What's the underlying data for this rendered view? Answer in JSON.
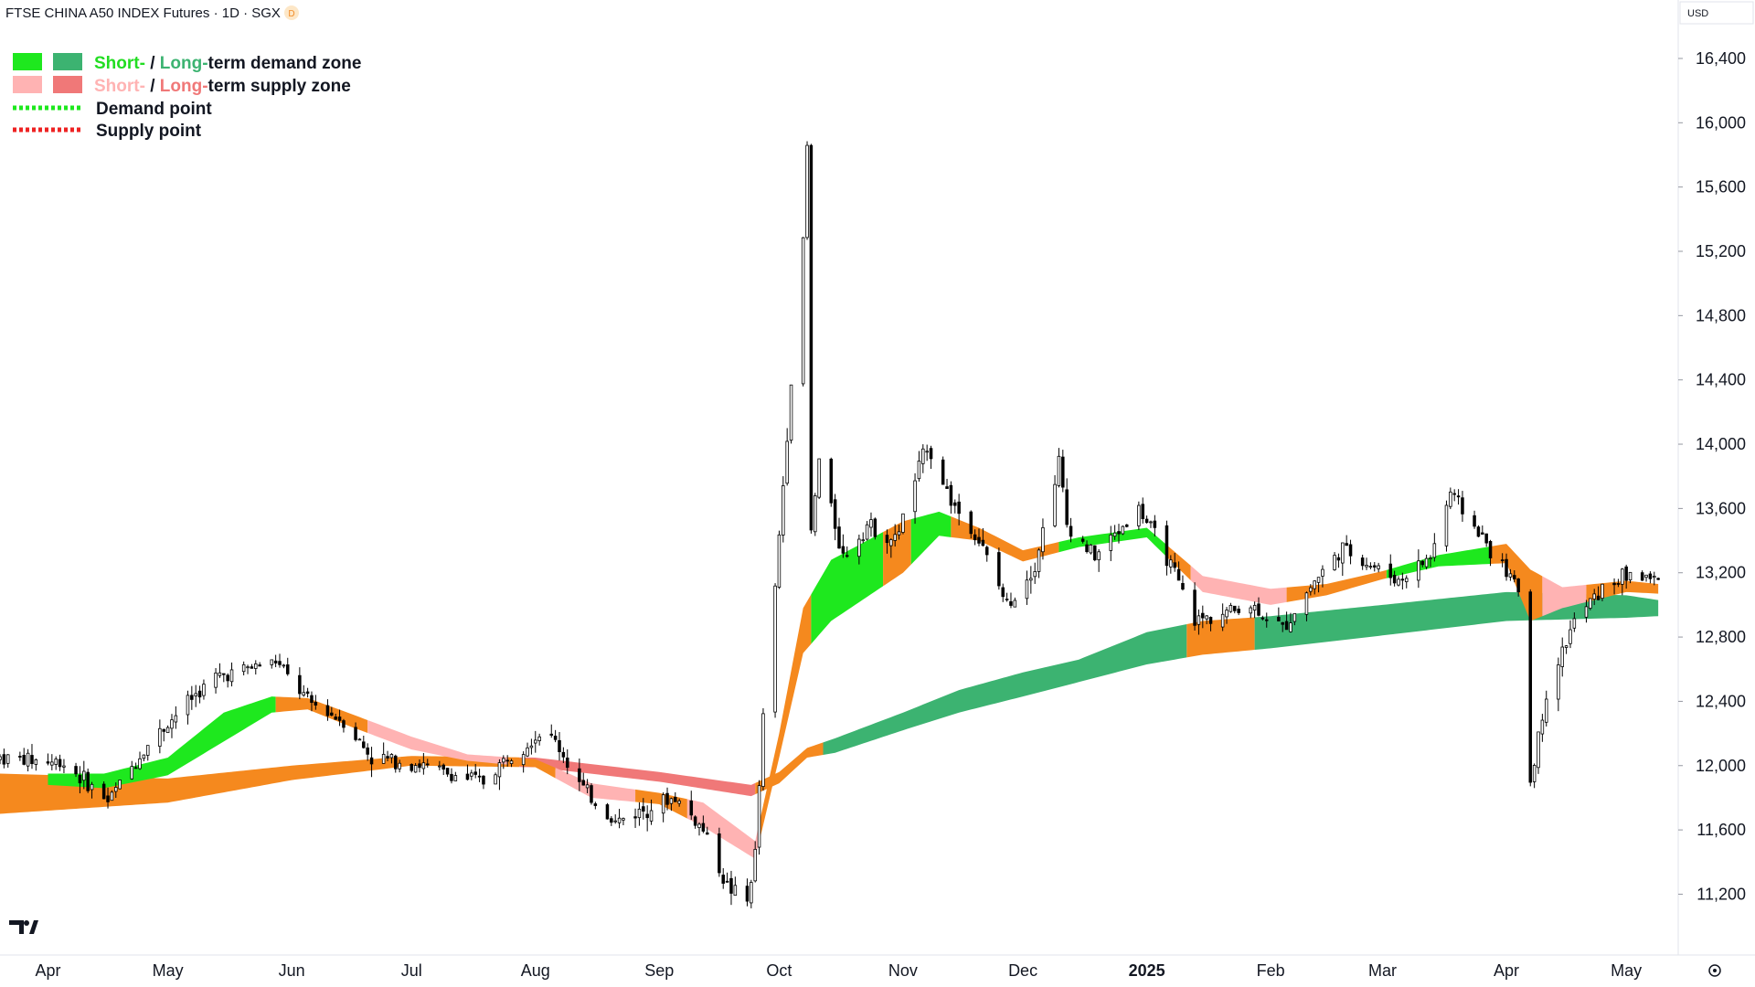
{
  "header": {
    "title": "FTSE CHINA A50 INDEX Futures · 1D · SGX",
    "badge": "D",
    "currency": "USD"
  },
  "legend": {
    "items": [
      {
        "kind": "zone",
        "short_label": "Short-",
        "sep": " / ",
        "long_label": "Long-",
        "rest": "term demand zone",
        "short_color": "#1ee81e",
        "long_color": "#3cb371",
        "short_text_color": "#22dd22",
        "long_text_color": "#3cb371"
      },
      {
        "kind": "zone",
        "short_label": "Short-",
        "sep": " / ",
        "long_label": "Long-",
        "rest": "term supply zone",
        "short_color": "#ffb3b3",
        "long_color": "#f07878",
        "short_text_color": "#ffb3b3",
        "long_text_color": "#f07878"
      },
      {
        "kind": "point",
        "label": "Demand point",
        "color": "#1ee81e"
      },
      {
        "kind": "point",
        "label": "Supply point",
        "color": "#ee2222"
      }
    ]
  },
  "colors": {
    "candle_up_fill": "#ffffff",
    "candle_down_fill": "#000000",
    "candle_stroke": "#000000",
    "neutral_zone": "#f5891e",
    "demand_short": "#1ee81e",
    "demand_long": "#3cb371",
    "supply_short": "#ffb3b3",
    "supply_long": "#f07878"
  },
  "chart_data": {
    "type": "candlestick",
    "ylim": [
      10850,
      16650
    ],
    "y_ticks": [
      11200,
      11600,
      12000,
      12400,
      12800,
      13200,
      13600,
      14000,
      14400,
      14800,
      15200,
      15600,
      16000,
      16400
    ],
    "y_tick_labels": [
      "11,200",
      "11,600",
      "12,000",
      "12,400",
      "12,800",
      "13,200",
      "13,600",
      "14,000",
      "14,400",
      "14,800",
      "15,200",
      "15,600",
      "16,000",
      "16,400"
    ],
    "x_range": [
      "2024-03-20",
      "2025-05-14"
    ],
    "x_ticks": [
      {
        "date": "2024-04-01",
        "label": "Apr",
        "bold": false
      },
      {
        "date": "2024-05-01",
        "label": "May",
        "bold": false
      },
      {
        "date": "2024-06-01",
        "label": "Jun",
        "bold": false
      },
      {
        "date": "2024-07-01",
        "label": "Jul",
        "bold": false
      },
      {
        "date": "2024-08-01",
        "label": "Aug",
        "bold": false
      },
      {
        "date": "2024-09-01",
        "label": "Sep",
        "bold": false
      },
      {
        "date": "2024-10-01",
        "label": "Oct",
        "bold": false
      },
      {
        "date": "2024-11-01",
        "label": "Nov",
        "bold": false
      },
      {
        "date": "2024-12-01",
        "label": "Dec",
        "bold": false
      },
      {
        "date": "2025-01-01",
        "label": "2025",
        "bold": true
      },
      {
        "date": "2025-02-01",
        "label": "Feb",
        "bold": false
      },
      {
        "date": "2025-03-01",
        "label": "Mar",
        "bold": false
      },
      {
        "date": "2025-04-01",
        "label": "Apr",
        "bold": false
      },
      {
        "date": "2025-05-01",
        "label": "May",
        "bold": false
      }
    ],
    "price_keypoints": [
      [
        "2024-03-20",
        12050
      ],
      [
        "2024-04-05",
        12020
      ],
      [
        "2024-04-16",
        11780
      ],
      [
        "2024-04-25",
        12100
      ],
      [
        "2024-05-06",
        12400
      ],
      [
        "2024-05-13",
        12550
      ],
      [
        "2024-05-20",
        12600
      ],
      [
        "2024-05-28",
        12650
      ],
      [
        "2024-06-05",
        12400
      ],
      [
        "2024-06-14",
        12280
      ],
      [
        "2024-06-21",
        12050
      ],
      [
        "2024-07-01",
        12020
      ],
      [
        "2024-07-10",
        11950
      ],
      [
        "2024-07-19",
        11900
      ],
      [
        "2024-07-26",
        12080
      ],
      [
        "2024-08-02",
        12200
      ],
      [
        "2024-08-06",
        12150
      ],
      [
        "2024-08-13",
        11850
      ],
      [
        "2024-08-21",
        11650
      ],
      [
        "2024-08-30",
        11750
      ],
      [
        "2024-09-05",
        11800
      ],
      [
        "2024-09-12",
        11600
      ],
      [
        "2024-09-18",
        11250
      ],
      [
        "2024-09-23",
        11150
      ],
      [
        "2024-09-25",
        11450
      ],
      [
        "2024-09-27",
        12300
      ],
      [
        "2024-09-30",
        13100
      ],
      [
        "2024-10-04",
        14400
      ],
      [
        "2024-10-07",
        15250
      ],
      [
        "2024-10-08",
        15850
      ],
      [
        "2024-10-09",
        13450
      ],
      [
        "2024-10-11",
        13900
      ],
      [
        "2024-10-17",
        13300
      ],
      [
        "2024-10-23",
        13500
      ],
      [
        "2024-10-30",
        13400
      ],
      [
        "2024-11-07",
        14000
      ],
      [
        "2024-11-13",
        13650
      ],
      [
        "2024-11-20",
        13400
      ],
      [
        "2024-11-27",
        13000
      ],
      [
        "2024-12-04",
        13250
      ],
      [
        "2024-12-10",
        13900
      ],
      [
        "2024-12-12",
        13500
      ],
      [
        "2024-12-19",
        13300
      ],
      [
        "2024-12-30",
        13600
      ],
      [
        "2025-01-06",
        13300
      ],
      [
        "2025-01-13",
        12900
      ],
      [
        "2025-01-20",
        12950
      ],
      [
        "2025-01-27",
        13000
      ],
      [
        "2025-02-04",
        12850
      ],
      [
        "2025-02-12",
        13150
      ],
      [
        "2025-02-19",
        13350
      ],
      [
        "2025-02-26",
        13250
      ],
      [
        "2025-03-05",
        13150
      ],
      [
        "2025-03-13",
        13300
      ],
      [
        "2025-03-18",
        13700
      ],
      [
        "2025-03-25",
        13450
      ],
      [
        "2025-04-01",
        13200
      ],
      [
        "2025-04-04",
        13100
      ],
      [
        "2025-04-07",
        11900
      ],
      [
        "2025-04-11",
        12450
      ],
      [
        "2025-04-18",
        12900
      ],
      [
        "2025-04-25",
        13100
      ],
      [
        "2025-05-02",
        13200
      ],
      [
        "2025-05-09",
        13150
      ]
    ],
    "zones": {
      "long_band": {
        "upper": [
          [
            "2024-03-20",
            11950
          ],
          [
            "2024-05-01",
            11920
          ],
          [
            "2024-06-01",
            12000
          ],
          [
            "2024-07-01",
            12060
          ],
          [
            "2024-08-01",
            12050
          ],
          [
            "2024-09-01",
            11960
          ],
          [
            "2024-09-24",
            11880
          ],
          [
            "2024-10-01",
            11960
          ],
          [
            "2024-10-08",
            12110
          ],
          [
            "2024-10-15",
            12170
          ],
          [
            "2024-11-01",
            12330
          ],
          [
            "2024-11-15",
            12470
          ],
          [
            "2024-12-01",
            12580
          ],
          [
            "2024-12-15",
            12660
          ],
          [
            "2025-01-01",
            12830
          ],
          [
            "2025-01-15",
            12900
          ],
          [
            "2025-02-01",
            12930
          ],
          [
            "2025-03-01",
            13000
          ],
          [
            "2025-04-01",
            13080
          ],
          [
            "2025-05-01",
            13060
          ],
          [
            "2025-05-09",
            13030
          ]
        ],
        "lower": [
          [
            "2024-03-20",
            11700
          ],
          [
            "2024-05-01",
            11770
          ],
          [
            "2024-06-01",
            11910
          ],
          [
            "2024-07-01",
            12000
          ],
          [
            "2024-08-01",
            11990
          ],
          [
            "2024-09-01",
            11900
          ],
          [
            "2024-09-24",
            11810
          ],
          [
            "2024-10-01",
            11890
          ],
          [
            "2024-10-08",
            12050
          ],
          [
            "2024-10-15",
            12080
          ],
          [
            "2024-11-01",
            12220
          ],
          [
            "2024-11-15",
            12330
          ],
          [
            "2024-12-01",
            12430
          ],
          [
            "2024-12-15",
            12520
          ],
          [
            "2025-01-01",
            12630
          ],
          [
            "2025-01-15",
            12690
          ],
          [
            "2025-02-01",
            12730
          ],
          [
            "2025-03-01",
            12810
          ],
          [
            "2025-04-01",
            12900
          ],
          [
            "2025-05-01",
            12920
          ],
          [
            "2025-05-09",
            12930
          ]
        ],
        "segments": [
          {
            "from": "2024-03-20",
            "to": "2024-06-28",
            "state": "neutral"
          },
          {
            "from": "2024-06-28",
            "to": "2024-07-28",
            "state": "neutral"
          },
          {
            "from": "2024-07-28",
            "to": "2024-09-25",
            "state": "supply"
          },
          {
            "from": "2024-09-25",
            "to": "2024-10-12",
            "state": "neutral"
          },
          {
            "from": "2024-10-12",
            "to": "2025-01-11",
            "state": "demand"
          },
          {
            "from": "2025-01-11",
            "to": "2025-01-28",
            "state": "neutral_demand"
          },
          {
            "from": "2025-01-28",
            "to": "2025-05-09",
            "state": "demand"
          }
        ]
      },
      "short_band": {
        "upper": [
          [
            "2024-04-01",
            11950
          ],
          [
            "2024-04-15",
            11950
          ],
          [
            "2024-05-01",
            12050
          ],
          [
            "2024-05-15",
            12330
          ],
          [
            "2024-05-27",
            12430
          ],
          [
            "2024-06-05",
            12420
          ],
          [
            "2024-06-15",
            12330
          ],
          [
            "2024-07-01",
            12180
          ],
          [
            "2024-07-15",
            12070
          ],
          [
            "2024-08-01",
            12040
          ],
          [
            "2024-08-15",
            11890
          ],
          [
            "2024-09-01",
            11830
          ],
          [
            "2024-09-12",
            11770
          ],
          [
            "2024-09-25",
            11530
          ],
          [
            "2024-10-01",
            12200
          ],
          [
            "2024-10-07",
            12980
          ],
          [
            "2024-10-14",
            13280
          ],
          [
            "2024-11-01",
            13520
          ],
          [
            "2024-11-10",
            13580
          ],
          [
            "2024-11-20",
            13480
          ],
          [
            "2024-12-01",
            13340
          ],
          [
            "2024-12-15",
            13420
          ],
          [
            "2025-01-01",
            13480
          ],
          [
            "2025-01-15",
            13180
          ],
          [
            "2025-02-01",
            13100
          ],
          [
            "2025-02-15",
            13130
          ],
          [
            "2025-03-01",
            13210
          ],
          [
            "2025-03-15",
            13310
          ],
          [
            "2025-04-01",
            13380
          ],
          [
            "2025-04-07",
            13220
          ],
          [
            "2025-04-15",
            13110
          ],
          [
            "2025-05-01",
            13150
          ],
          [
            "2025-05-09",
            13130
          ]
        ],
        "lower": [
          [
            "2024-04-01",
            11880
          ],
          [
            "2024-04-15",
            11860
          ],
          [
            "2024-05-01",
            11940
          ],
          [
            "2024-05-15",
            12150
          ],
          [
            "2024-05-27",
            12330
          ],
          [
            "2024-06-05",
            12350
          ],
          [
            "2024-06-15",
            12250
          ],
          [
            "2024-07-01",
            12100
          ],
          [
            "2024-07-15",
            12030
          ],
          [
            "2024-08-01",
            11990
          ],
          [
            "2024-08-15",
            11800
          ],
          [
            "2024-09-01",
            11760
          ],
          [
            "2024-09-12",
            11620
          ],
          [
            "2024-09-25",
            11420
          ],
          [
            "2024-10-01",
            12050
          ],
          [
            "2024-10-07",
            12700
          ],
          [
            "2024-10-14",
            12900
          ],
          [
            "2024-11-01",
            13200
          ],
          [
            "2024-11-10",
            13430
          ],
          [
            "2024-11-20",
            13400
          ],
          [
            "2024-12-01",
            13270
          ],
          [
            "2024-12-15",
            13360
          ],
          [
            "2025-01-01",
            13420
          ],
          [
            "2025-01-15",
            13080
          ],
          [
            "2025-02-01",
            13000
          ],
          [
            "2025-02-15",
            13060
          ],
          [
            "2025-03-01",
            13160
          ],
          [
            "2025-03-15",
            13240
          ],
          [
            "2025-04-01",
            13260
          ],
          [
            "2025-04-07",
            12900
          ],
          [
            "2025-04-15",
            12980
          ],
          [
            "2025-05-01",
            13080
          ],
          [
            "2025-05-09",
            13070
          ]
        ],
        "segments": [
          {
            "from": "2024-04-01",
            "to": "2024-05-28",
            "state": "demand"
          },
          {
            "from": "2024-05-28",
            "to": "2024-06-20",
            "state": "neutral"
          },
          {
            "from": "2024-06-20",
            "to": "2024-07-25",
            "state": "supply"
          },
          {
            "from": "2024-07-25",
            "to": "2024-08-06",
            "state": "neutral"
          },
          {
            "from": "2024-08-06",
            "to": "2024-08-26",
            "state": "supply"
          },
          {
            "from": "2024-08-26",
            "to": "2024-09-08",
            "state": "neutral"
          },
          {
            "from": "2024-09-08",
            "to": "2024-09-26",
            "state": "supply"
          },
          {
            "from": "2024-09-26",
            "to": "2024-10-09",
            "state": "neutral"
          },
          {
            "from": "2024-10-09",
            "to": "2024-10-27",
            "state": "demand"
          },
          {
            "from": "2024-10-27",
            "to": "2024-11-03",
            "state": "neutral"
          },
          {
            "from": "2024-11-03",
            "to": "2024-11-13",
            "state": "demand"
          },
          {
            "from": "2024-11-13",
            "to": "2024-12-10",
            "state": "neutral"
          },
          {
            "from": "2024-12-10",
            "to": "2025-01-06",
            "state": "demand"
          },
          {
            "from": "2025-01-06",
            "to": "2025-01-12",
            "state": "neutral"
          },
          {
            "from": "2025-01-12",
            "to": "2025-02-05",
            "state": "supply"
          },
          {
            "from": "2025-02-05",
            "to": "2025-03-02",
            "state": "neutral"
          },
          {
            "from": "2025-03-02",
            "to": "2025-03-28",
            "state": "demand"
          },
          {
            "from": "2025-03-28",
            "to": "2025-04-10",
            "state": "neutral"
          },
          {
            "from": "2025-04-10",
            "to": "2025-04-21",
            "state": "supply"
          },
          {
            "from": "2025-04-21",
            "to": "2025-05-09",
            "state": "neutral"
          }
        ]
      }
    }
  }
}
